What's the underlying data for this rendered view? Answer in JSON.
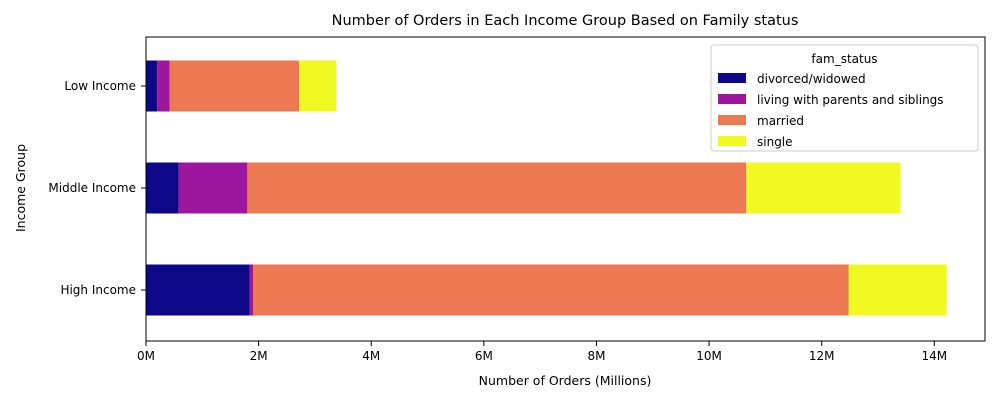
{
  "chart_data": {
    "type": "bar",
    "orientation": "horizontal",
    "stacked": true,
    "title": "Number of Orders in Each Income Group Based on Family status",
    "xlabel": "Number of Orders (Millions)",
    "ylabel": "Income Group",
    "xlim": [
      0,
      14.9
    ],
    "x_ticks": [
      0,
      2,
      4,
      6,
      8,
      10,
      12,
      14
    ],
    "x_tick_labels": [
      "0M",
      "2M",
      "4M",
      "6M",
      "8M",
      "10M",
      "12M",
      "14M"
    ],
    "categories": [
      "High Income",
      "Middle Income",
      "Low Income"
    ],
    "series": [
      {
        "name": "divorced/widowed",
        "color": "#0d0887",
        "values": [
          1.84,
          0.58,
          0.2
        ]
      },
      {
        "name": "living with parents and siblings",
        "color": "#9c179e",
        "values": [
          0.06,
          1.22,
          0.22
        ]
      },
      {
        "name": "married",
        "color": "#ed7953",
        "values": [
          10.58,
          8.86,
          2.3
        ]
      },
      {
        "name": "single",
        "color": "#f0f921",
        "values": [
          1.74,
          2.74,
          0.66
        ]
      }
    ],
    "grid": false,
    "legend": {
      "title": "fam_status",
      "position": "top-right"
    }
  }
}
